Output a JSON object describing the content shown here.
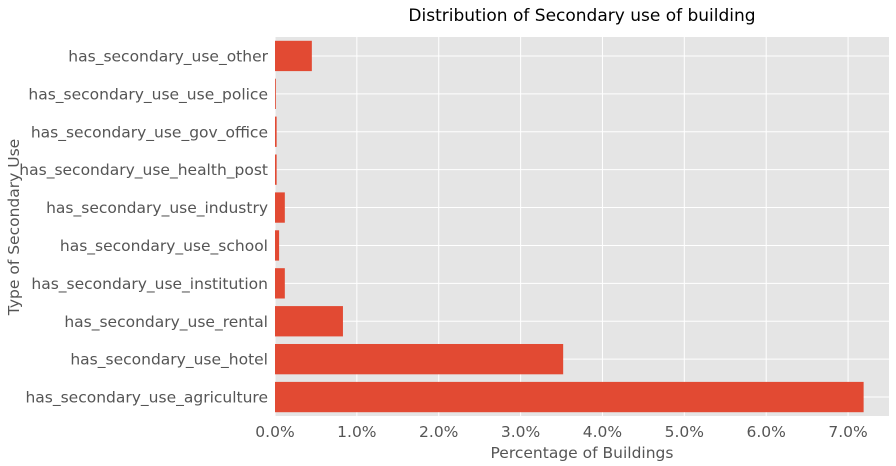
{
  "chart_data": {
    "type": "bar",
    "orientation": "horizontal",
    "title": "Distribution of Secondary use of building",
    "xlabel": "Percentage of Buildings",
    "ylabel": "Type of Secondary Use",
    "categories": [
      "has_secondary_use_agriculture",
      "has_secondary_use_hotel",
      "has_secondary_use_rental",
      "has_secondary_use_institution",
      "has_secondary_use_school",
      "has_secondary_use_industry",
      "has_secondary_use_health_post",
      "has_secondary_use_gov_office",
      "has_secondary_use_use_police",
      "has_secondary_use_other"
    ],
    "values": [
      7.19,
      3.52,
      0.83,
      0.12,
      0.05,
      0.12,
      0.02,
      0.02,
      0.01,
      0.45
    ],
    "value_unit": "%",
    "xlim": [
      0,
      7.5
    ],
    "xticks": [
      0,
      1,
      2,
      3,
      4,
      5,
      6,
      7
    ],
    "xtick_labels": [
      "0.0%",
      "1.0%",
      "2.0%",
      "3.0%",
      "4.0%",
      "5.0%",
      "6.0%",
      "7.0%"
    ],
    "grid": true,
    "style": "ggplot",
    "colors": {
      "bar": "#E24A33",
      "background": "#E5E5E5",
      "grid": "#FFFFFF",
      "text": "#555555"
    }
  }
}
